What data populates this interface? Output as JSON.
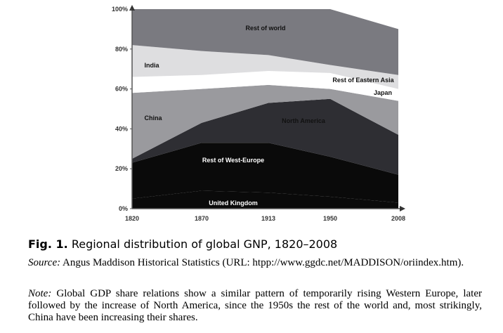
{
  "chart_data": {
    "type": "area",
    "stacked": true,
    "normalized": true,
    "x": [
      "1820",
      "1870",
      "1913",
      "1950",
      "2008"
    ],
    "y_ticks": [
      "0%",
      "20%",
      "40%",
      "60%",
      "80%",
      "100%"
    ],
    "ylim": [
      0,
      100
    ],
    "grid": false,
    "series": [
      {
        "name": "United Kingdom",
        "color": "#0a0a0a",
        "values": [
          5,
          9,
          8,
          6,
          3
        ]
      },
      {
        "name": "Rest of West-Europe",
        "color": "#0a0a0a",
        "values": [
          18,
          24,
          25,
          20,
          14
        ]
      },
      {
        "name": "North America",
        "color": "#2e2e33",
        "values": [
          2,
          10,
          20,
          29,
          20
        ]
      },
      {
        "name": "China",
        "color": "#9a9a9e",
        "values": [
          33,
          17,
          9,
          5,
          17
        ]
      },
      {
        "name": "Japan",
        "color": "#ffffff",
        "values": [
          3,
          2,
          3,
          3,
          0
        ]
      },
      {
        "name": "Rest of Eastern Asia",
        "color": "#ffffff",
        "values": [
          5,
          5,
          4,
          5,
          6
        ]
      },
      {
        "name": "India",
        "color": "#dedee0",
        "values": [
          16,
          12,
          8,
          4,
          7
        ]
      },
      {
        "name": "Rest of world",
        "color": "#7a7a80",
        "values": [
          18,
          21,
          23,
          28,
          23
        ]
      }
    ]
  },
  "caption": {
    "label": "Fig. 1.",
    "text": "Regional distribution of global GNP, 1820–2008"
  },
  "source": {
    "lead": "Source:",
    "text": "Angus Maddison Historical Statistics (URL: htpp://www.ggdc.net/MADDISON/oriindex.htm)."
  },
  "note": {
    "lead": "Note:",
    "text": "Global GDP share relations show a similar pattern of temporarily rising Western Europe, later followed by the increase of North America, since the 1950s the rest of the world and, most strikingly, China have been increasing their shares."
  }
}
